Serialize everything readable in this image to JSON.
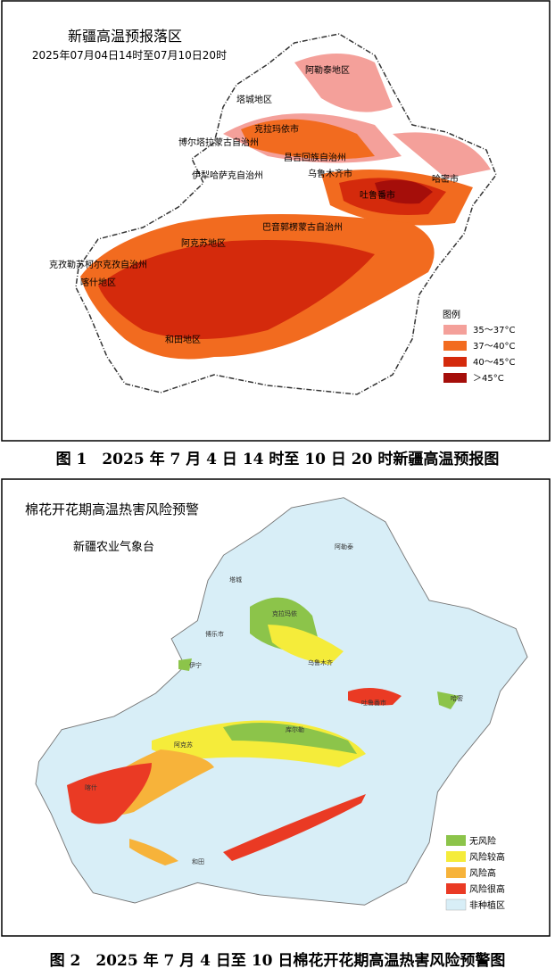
{
  "figure1": {
    "title": "新疆高温预报落区",
    "subtitle": "2025年07月04日14时至07月10日20时",
    "regions": [
      "阿勒泰地区",
      "塔城地区",
      "克拉玛依市",
      "博尔塔拉蒙古自治州",
      "昌吉回族自治州",
      "伊犁哈萨克自治州",
      "乌鲁木齐市",
      "吐鲁番市",
      "哈密市",
      "巴音郭楞蒙古自治州",
      "阿克苏地区",
      "克孜勒苏柯尔克孜自治州",
      "喀什地区",
      "和田地区"
    ],
    "legend": {
      "title": "图例",
      "items": [
        "35～37°C",
        "37～40°C",
        "40～45°C",
        "＞45°C"
      ]
    },
    "caption": "图 1　2025 年 7 月 4 日 14 时至 10 日 20 时新疆高温预报图"
  },
  "figure2": {
    "title": "棉花开花期高温热害风险预警",
    "issuer": "新疆农业气象台",
    "places": [
      "阿勒泰",
      "塔城",
      "克拉玛依",
      "博乐市",
      "伊宁",
      "乌鲁木齐",
      "吐鲁番市",
      "哈密",
      "库尔勒",
      "阿克苏",
      "喀什",
      "和田"
    ],
    "legend": {
      "items": [
        "无风险",
        "风险较高",
        "风险高",
        "风险很高",
        "非种植区"
      ]
    },
    "caption": "图 2　2025 年 7 月 4 日至 10 日棉花开花期高温热害风险预警图"
  }
}
